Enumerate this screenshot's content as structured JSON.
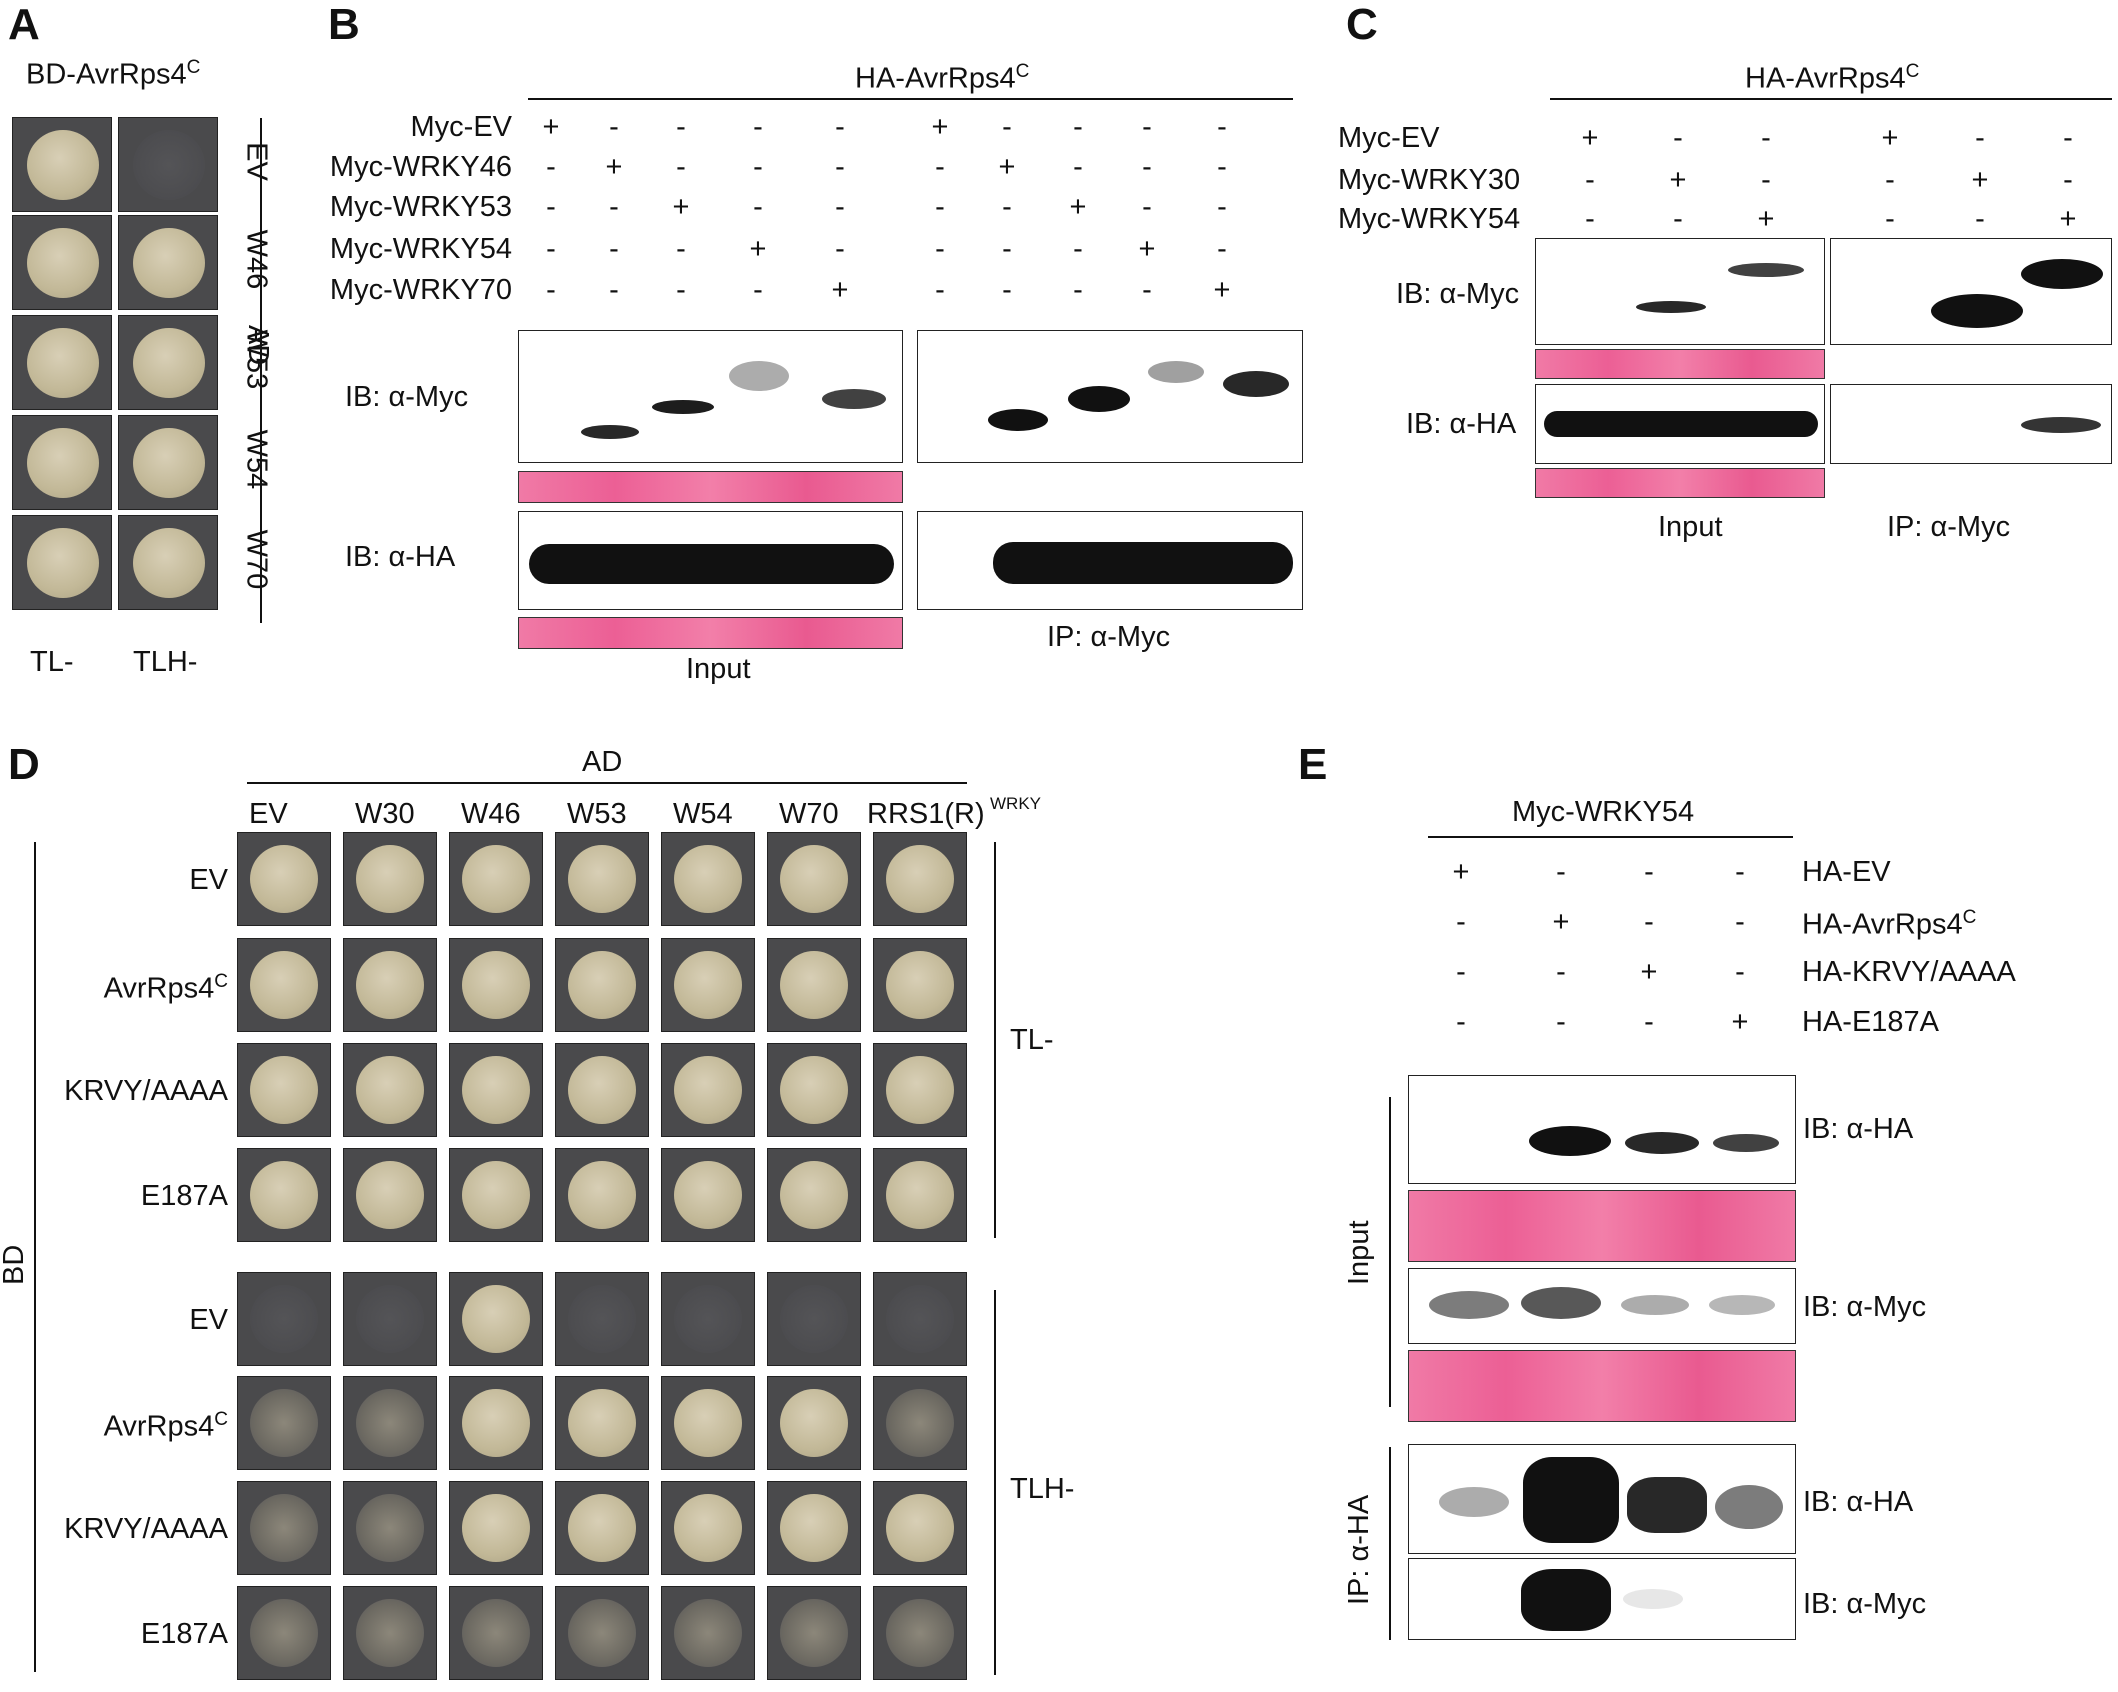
{
  "panels": {
    "A": {
      "label": "A",
      "title": "BD-AvrRps4",
      "title_sup": "C",
      "rows": [
        "EV",
        "W46",
        "W53",
        "W54",
        "W70"
      ],
      "side_label": "AD",
      "columns": [
        "TL-",
        "TLH-"
      ],
      "growth": [
        [
          1,
          0
        ],
        [
          1,
          1
        ],
        [
          1,
          1
        ],
        [
          1,
          1
        ],
        [
          1,
          1
        ]
      ]
    },
    "B": {
      "label": "B",
      "header": "HA-AvrRps4",
      "header_sup": "C",
      "constructs": [
        {
          "name": "Myc-EV",
          "signs": [
            "+",
            "-",
            "-",
            "-",
            "-",
            "+",
            "-",
            "-",
            "-",
            "-"
          ]
        },
        {
          "name": "Myc-WRKY46",
          "signs": [
            "-",
            "+",
            "-",
            "-",
            "-",
            "-",
            "+",
            "-",
            "-",
            "-"
          ]
        },
        {
          "name": "Myc-WRKY53",
          "signs": [
            "-",
            "-",
            "+",
            "-",
            "-",
            "-",
            "-",
            "+",
            "-",
            "-"
          ]
        },
        {
          "name": "Myc-WRKY54",
          "signs": [
            "-",
            "-",
            "-",
            "+",
            "-",
            "-",
            "-",
            "-",
            "+",
            "-"
          ]
        },
        {
          "name": "Myc-WRKY70",
          "signs": [
            "-",
            "-",
            "-",
            "-",
            "+",
            "-",
            "-",
            "-",
            "-",
            "+"
          ]
        }
      ],
      "ib_myc": "IB: α-Myc",
      "ib_ha": "IB: α-HA",
      "input_label": "Input",
      "ip_label": "IP: α-Myc"
    },
    "C": {
      "label": "C",
      "header": "HA-AvrRps4",
      "header_sup": "C",
      "constructs": [
        {
          "name": "Myc-EV",
          "signs": [
            "+",
            "-",
            "-",
            "+",
            "-",
            "-"
          ]
        },
        {
          "name": "Myc-WRKY30",
          "signs": [
            "-",
            "+",
            "-",
            "-",
            "+",
            "-"
          ]
        },
        {
          "name": "Myc-WRKY54",
          "signs": [
            "-",
            "-",
            "+",
            "-",
            "-",
            "+"
          ]
        }
      ],
      "ib_myc": "IB: α-Myc",
      "ib_ha": "IB: α-HA",
      "input_label": "Input",
      "ip_label": "IP: α-Myc"
    },
    "D": {
      "label": "D",
      "ad_label": "AD",
      "bd_label": "BD",
      "columns": [
        "EV",
        "W30",
        "W46",
        "W53",
        "W54",
        "W70",
        "RRS1(R)"
      ],
      "last_col_sup": "WRKY",
      "rows": [
        "EV",
        "AvrRps4",
        "KRVY/AAAA",
        "E187A"
      ],
      "row2_sup": "C",
      "tl_label": "TL-",
      "tlh_label": "TLH-",
      "tlh_growth": [
        [
          0,
          0,
          1,
          0,
          0,
          0,
          0
        ],
        [
          2,
          2,
          1,
          1,
          1,
          1,
          2
        ],
        [
          2,
          2,
          1,
          1,
          1,
          1,
          1
        ],
        [
          2,
          2,
          2,
          2,
          2,
          2,
          2
        ]
      ]
    },
    "E": {
      "label": "E",
      "header": "Myc-WRKY54",
      "constructs": [
        {
          "name": "HA-EV",
          "signs": [
            "+",
            "-",
            "-",
            "-"
          ]
        },
        {
          "name": "HA-AvrRps4",
          "sup": "C",
          "signs": [
            "-",
            "+",
            "-",
            "-"
          ]
        },
        {
          "name": "HA-KRVY/AAAA",
          "signs": [
            "-",
            "-",
            "+",
            "-"
          ]
        },
        {
          "name": "HA-E187A",
          "signs": [
            "-",
            "-",
            "-",
            "+"
          ]
        }
      ],
      "ib_ha": "IB: α-HA",
      "ib_myc": "IB: α-Myc",
      "ib_ha2": "IB: α-HA",
      "ib_myc2": "IB: α-Myc",
      "input_label": "Input",
      "ip_label": "IP: α-HA"
    }
  }
}
